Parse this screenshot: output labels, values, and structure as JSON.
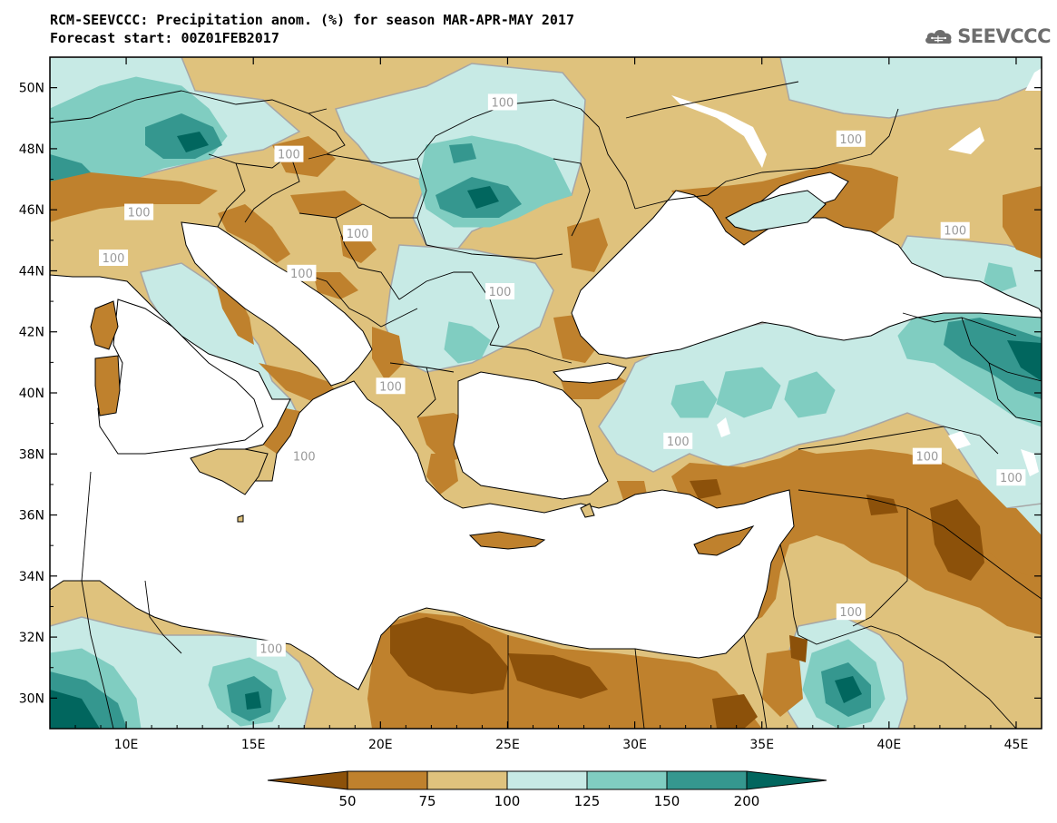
{
  "header": {
    "title_line1": "RCM-SEEVCCC: Precipitation anom. (%) for season MAR-APR-MAY 2017",
    "title_line2": "Forecast start: 00Z01FEB2017"
  },
  "logo": {
    "text": "SEEVCCC",
    "icon": "cloud-icon",
    "color": "#6d6d6d"
  },
  "map": {
    "lon_range": [
      7,
      46
    ],
    "lat_range": [
      29,
      51
    ],
    "x_ticks": [
      {
        "lon": 10,
        "label": "10E"
      },
      {
        "lon": 15,
        "label": "15E"
      },
      {
        "lon": 20,
        "label": "20E"
      },
      {
        "lon": 25,
        "label": "25E"
      },
      {
        "lon": 30,
        "label": "30E"
      },
      {
        "lon": 35,
        "label": "35E"
      },
      {
        "lon": 40,
        "label": "40E"
      },
      {
        "lon": 45,
        "label": "45E"
      }
    ],
    "y_ticks": [
      {
        "lat": 50,
        "label": "50N"
      },
      {
        "lat": 48,
        "label": "48N"
      },
      {
        "lat": 46,
        "label": "46N"
      },
      {
        "lat": 44,
        "label": "44N"
      },
      {
        "lat": 42,
        "label": "42N"
      },
      {
        "lat": 40,
        "label": "40N"
      },
      {
        "lat": 38,
        "label": "38N"
      },
      {
        "lat": 36,
        "label": "36N"
      },
      {
        "lat": 34,
        "label": "34N"
      },
      {
        "lat": 32,
        "label": "32N"
      },
      {
        "lat": 30,
        "label": "30N"
      }
    ],
    "contour_labels": [
      {
        "lon": 24.8,
        "lat": 49.5,
        "text": "100"
      },
      {
        "lon": 38.5,
        "lat": 48.3,
        "text": "100"
      },
      {
        "lon": 16.4,
        "lat": 47.8,
        "text": "100"
      },
      {
        "lon": 10.5,
        "lat": 45.9,
        "text": "100"
      },
      {
        "lon": 19.1,
        "lat": 45.2,
        "text": "100"
      },
      {
        "lon": 42.6,
        "lat": 45.3,
        "text": "100"
      },
      {
        "lon": 9.5,
        "lat": 44.4,
        "text": "100"
      },
      {
        "lon": 16.9,
        "lat": 43.9,
        "text": "100"
      },
      {
        "lon": 24.7,
        "lat": 43.3,
        "text": "100"
      },
      {
        "lon": 20.4,
        "lat": 40.2,
        "text": "100"
      },
      {
        "lon": 17.0,
        "lat": 37.9,
        "text": "100"
      },
      {
        "lon": 31.7,
        "lat": 38.4,
        "text": "100"
      },
      {
        "lon": 41.5,
        "lat": 37.9,
        "text": "100"
      },
      {
        "lon": 44.8,
        "lat": 37.2,
        "text": "100"
      },
      {
        "lon": 38.5,
        "lat": 32.8,
        "text": "100"
      },
      {
        "lon": 15.7,
        "lat": 31.6,
        "text": "100"
      }
    ]
  },
  "colorbar": {
    "colors": [
      "#8c510a",
      "#bf812d",
      "#dfc27d",
      "#c7eae5",
      "#80cdc1",
      "#35978f",
      "#01665e"
    ],
    "labels": [
      "50",
      "75",
      "100",
      "125",
      "150",
      "200"
    ]
  },
  "palette": {
    "sea": "#ffffff",
    "dry_strong": "#8c510a",
    "dry": "#bf812d",
    "dry_light": "#dfc27d",
    "wet_light": "#c7eae5",
    "wet": "#80cdc1",
    "wet_strong": "#35978f",
    "wet_extreme": "#01665e"
  }
}
